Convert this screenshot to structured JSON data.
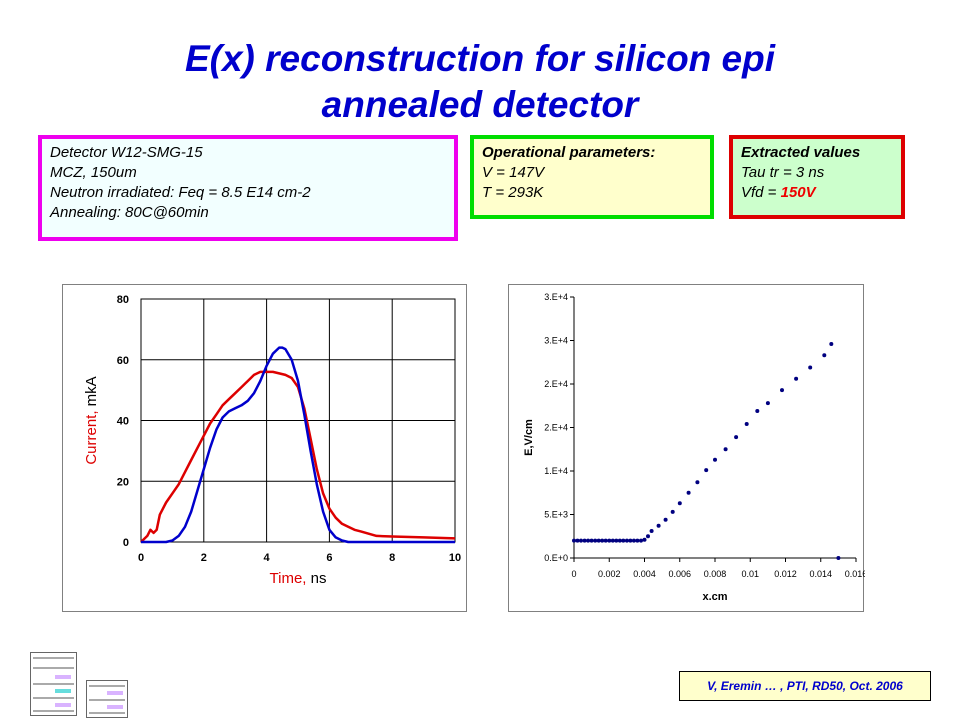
{
  "title": {
    "line1": "E(x) reconstruction for silicon epi",
    "line2": "annealed detector"
  },
  "detector_box": {
    "lines": [
      "Detector W12-SMG-15",
      "MCZ, 150um",
      "Neutron irradiated: Feq = 8.5 E14 cm-2",
      "Annealing:  80C@60min"
    ]
  },
  "operational_box": {
    "heading": "Operational parameters:",
    "lines": [
      "V = 147V",
      "T = 293K"
    ]
  },
  "extracted_box": {
    "heading": "Extracted values",
    "tau": "Tau tr = 3 ns",
    "vfd_prefix": "Vfd = ",
    "vfd_value": "150V"
  },
  "citation": "V, Eremin … , PTI, RD50, Oct. 2006",
  "colors": {
    "title": "#0000cc",
    "red_curve": "#dd0000",
    "blue_curve": "#0000cc",
    "scatter": "#000080"
  },
  "chart_data": [
    {
      "type": "line",
      "xlabel_main": "Time,",
      "xlabel_unit": " ns",
      "ylabel_main": "Current,",
      "ylabel_unit": " mkA",
      "xlim": [
        0,
        10
      ],
      "ylim": [
        0,
        80
      ],
      "xticks": [
        0,
        2,
        4,
        6,
        8,
        10
      ],
      "yticks": [
        0,
        20,
        40,
        60,
        80
      ],
      "grid": true,
      "series": [
        {
          "color": "red",
          "x": [
            0,
            0.2,
            0.3,
            0.4,
            0.5,
            0.6,
            0.8,
            1.0,
            1.2,
            1.4,
            1.6,
            1.8,
            2.0,
            2.2,
            2.4,
            2.6,
            2.8,
            3.0,
            3.2,
            3.4,
            3.6,
            3.8,
            4.0,
            4.2,
            4.4,
            4.6,
            4.8,
            5.0,
            5.2,
            5.4,
            5.6,
            5.8,
            6.0,
            6.2,
            6.4,
            6.6,
            6.8,
            7.0,
            7.5,
            8.0,
            9.0,
            10.0
          ],
          "y": [
            0,
            2,
            4,
            3,
            4,
            9,
            13,
            16,
            19,
            23,
            27,
            31,
            35,
            39,
            42,
            45,
            47,
            49,
            51,
            53,
            55,
            56,
            56,
            56,
            55.5,
            55,
            54,
            51,
            44,
            34,
            24,
            16,
            11,
            8,
            6,
            5,
            4,
            3.5,
            2,
            1.8,
            1.5,
            1.2
          ]
        },
        {
          "color": "blue",
          "x": [
            0,
            0.5,
            0.8,
            1.0,
            1.2,
            1.4,
            1.6,
            1.8,
            2.0,
            2.2,
            2.4,
            2.6,
            2.8,
            3.0,
            3.2,
            3.4,
            3.6,
            3.8,
            4.0,
            4.2,
            4.4,
            4.5,
            4.6,
            4.8,
            5.0,
            5.2,
            5.4,
            5.6,
            5.8,
            6.0,
            6.2,
            6.4,
            6.6,
            6.8,
            7.0,
            8.0,
            9.0,
            10.0
          ],
          "y": [
            0,
            0,
            0,
            0.5,
            2,
            5,
            10,
            17,
            24,
            31,
            37,
            41,
            43,
            44,
            45,
            46.5,
            49,
            53,
            58,
            62,
            64,
            64,
            63.5,
            60,
            53,
            42,
            30,
            19,
            10,
            4,
            1.5,
            0.5,
            0,
            0,
            0,
            0,
            0,
            0
          ]
        }
      ]
    },
    {
      "type": "scatter",
      "xlabel": "x.cm",
      "ylabel": "E,V/cm",
      "xlim": [
        0,
        0.016
      ],
      "ylim": [
        0,
        30000
      ],
      "xticks": [
        "0",
        "0.002",
        "0.004",
        "0.006",
        "0.008",
        "0.01",
        "0.012",
        "0.014",
        "0.016"
      ],
      "xtick_values": [
        0,
        0.002,
        0.004,
        0.006,
        0.008,
        0.01,
        0.012,
        0.014,
        0.016
      ],
      "yticks": [
        "0.E+0",
        "5.E+3",
        "1.E+4",
        "2.E+4",
        "2.E+4",
        "3.E+4",
        "3.E+4"
      ],
      "ytick_values": [
        0,
        5000,
        10000,
        15000,
        20000,
        25000,
        30000
      ],
      "grid": false,
      "x": [
        0,
        0.0002,
        0.0004,
        0.0006,
        0.0008,
        0.001,
        0.0012,
        0.0014,
        0.0016,
        0.0018,
        0.002,
        0.0022,
        0.0024,
        0.0026,
        0.0028,
        0.003,
        0.0032,
        0.0034,
        0.0036,
        0.0038,
        0.004,
        0.0042,
        0.0044,
        0.0048,
        0.0052,
        0.0056,
        0.006,
        0.0065,
        0.007,
        0.0075,
        0.008,
        0.0086,
        0.0092,
        0.0098,
        0.0104,
        0.011,
        0.0118,
        0.0126,
        0.0134,
        0.0142,
        0.0146
      ],
      "y": [
        2000,
        2000,
        2000,
        2000,
        2000,
        2000,
        2000,
        2000,
        2000,
        2000,
        2000,
        2000,
        2000,
        2000,
        2000,
        2000,
        2000,
        2000,
        2000,
        2000,
        2100,
        2500,
        3100,
        3700,
        4400,
        5300,
        6300,
        7500,
        8700,
        10100,
        11300,
        12500,
        13900,
        15400,
        16900,
        17800,
        19300,
        20600,
        21900,
        23300,
        24600
      ]
    }
  ]
}
